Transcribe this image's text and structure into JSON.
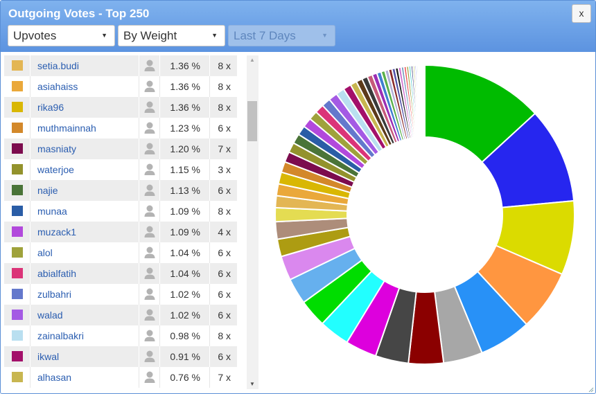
{
  "window": {
    "title": "Outgoing Votes - Top 250",
    "close_label": "x"
  },
  "filters": {
    "type": {
      "value": "Upvotes"
    },
    "sort": {
      "value": "By Weight"
    },
    "period": {
      "value": "Last 7 Days",
      "disabled": true
    }
  },
  "rows": [
    {
      "name": "setia.budi",
      "pct": "1.36 %",
      "count": "8 x",
      "color": "#e3b654"
    },
    {
      "name": "asiahaiss",
      "pct": "1.36 %",
      "count": "8 x",
      "color": "#eaa83a"
    },
    {
      "name": "rika96",
      "pct": "1.36 %",
      "count": "8 x",
      "color": "#d9b703"
    },
    {
      "name": "muthmainnah",
      "pct": "1.23 %",
      "count": "6 x",
      "color": "#d3882a"
    },
    {
      "name": "masniaty",
      "pct": "1.20 %",
      "count": "7 x",
      "color": "#7c0c4e"
    },
    {
      "name": "waterjoe",
      "pct": "1.15 %",
      "count": "3 x",
      "color": "#93922c"
    },
    {
      "name": "najie",
      "pct": "1.13 %",
      "count": "6 x",
      "color": "#4a7438"
    },
    {
      "name": "munaa",
      "pct": "1.09 %",
      "count": "8 x",
      "color": "#2a5da6"
    },
    {
      "name": "muzack1",
      "pct": "1.09 %",
      "count": "4 x",
      "color": "#b249dc"
    },
    {
      "name": "alol",
      "pct": "1.04 %",
      "count": "6 x",
      "color": "#9fa23b"
    },
    {
      "name": "abialfatih",
      "pct": "1.04 %",
      "count": "6 x",
      "color": "#db3478"
    },
    {
      "name": "zulbahri",
      "pct": "1.02 %",
      "count": "6 x",
      "color": "#6478cc"
    },
    {
      "name": "walad",
      "pct": "1.02 %",
      "count": "6 x",
      "color": "#a45ae4"
    },
    {
      "name": "zainalbakri",
      "pct": "0.98 %",
      "count": "8 x",
      "color": "#b9dff0"
    },
    {
      "name": "ikwal",
      "pct": "0.91 %",
      "count": "6 x",
      "color": "#a3106a"
    },
    {
      "name": "alhasan",
      "pct": "0.76 %",
      "count": "7 x",
      "color": "#c8b650"
    }
  ],
  "icons": {
    "voter": "user-icon",
    "close": "close-icon",
    "dropdown": "caret-down-icon",
    "scroll_up": "scroll-up-arrow-icon",
    "scroll_down": "scroll-down-arrow-icon"
  },
  "chart_data": {
    "type": "pie",
    "donut": true,
    "start": "top, clockwise",
    "slices": [
      {
        "percent": 14.0,
        "color": "#00bb00"
      },
      {
        "percent": 11.0,
        "color": "#2626ef"
      },
      {
        "percent": 8.5,
        "color": "#dbdb00"
      },
      {
        "percent": 7.0,
        "color": "#ff9640"
      },
      {
        "percent": 6.0,
        "color": "#2891f7"
      },
      {
        "percent": 4.5,
        "color": "#a7a7a7"
      },
      {
        "percent": 4.0,
        "color": "#8b0000"
      },
      {
        "percent": 3.8,
        "color": "#464646"
      },
      {
        "percent": 3.6,
        "color": "#dd00dd"
      },
      {
        "percent": 3.5,
        "color": "#22ffff"
      },
      {
        "percent": 3.2,
        "color": "#00dd00"
      },
      {
        "percent": 3.0,
        "color": "#66b0ee"
      },
      {
        "percent": 2.8,
        "color": "#da88ee"
      },
      {
        "percent": 2.0,
        "color": "#ad9c12"
      },
      {
        "percent": 2.0,
        "color": "#ad8d7a"
      },
      {
        "percent": 1.6,
        "color": "#e4dc52"
      },
      {
        "percent": 1.36,
        "color": "#e3b654"
      },
      {
        "percent": 1.36,
        "color": "#eaa83a"
      },
      {
        "percent": 1.36,
        "color": "#d9b703"
      },
      {
        "percent": 1.23,
        "color": "#d3882a"
      },
      {
        "percent": 1.2,
        "color": "#7c0c4e"
      },
      {
        "percent": 1.15,
        "color": "#93922c"
      },
      {
        "percent": 1.13,
        "color": "#4a7438"
      },
      {
        "percent": 1.09,
        "color": "#2a5da6"
      },
      {
        "percent": 1.09,
        "color": "#b249dc"
      },
      {
        "percent": 1.04,
        "color": "#9fa23b"
      },
      {
        "percent": 1.04,
        "color": "#db3478"
      },
      {
        "percent": 1.02,
        "color": "#6478cc"
      },
      {
        "percent": 1.02,
        "color": "#a45ae4"
      },
      {
        "percent": 0.98,
        "color": "#b9dff0"
      },
      {
        "percent": 0.91,
        "color": "#a3106a"
      },
      {
        "percent": 0.76,
        "color": "#c8b650"
      },
      {
        "percent": 0.7,
        "color": "#5c3a1a"
      },
      {
        "percent": 0.65,
        "color": "#3a3a3a"
      },
      {
        "percent": 0.6,
        "color": "#c65a7a"
      },
      {
        "percent": 0.55,
        "color": "#9b2fb5"
      },
      {
        "percent": 0.5,
        "color": "#3f7fd0"
      },
      {
        "percent": 0.45,
        "color": "#5ab04a"
      },
      {
        "percent": 0.42,
        "color": "#b0b0d8"
      },
      {
        "percent": 0.4,
        "color": "#8a2a2a"
      },
      {
        "percent": 0.38,
        "color": "#5555aa"
      },
      {
        "percent": 0.35,
        "color": "#202020"
      },
      {
        "percent": 0.33,
        "color": "#d070d0"
      },
      {
        "percent": 0.31,
        "color": "#7aa0c0"
      },
      {
        "percent": 0.29,
        "color": "#ee5555"
      },
      {
        "percent": 0.27,
        "color": "#a0a040"
      },
      {
        "percent": 0.25,
        "color": "#5fd0d0"
      },
      {
        "percent": 0.23,
        "color": "#404080"
      },
      {
        "percent": 0.21,
        "color": "#c0c060"
      },
      {
        "percent": 0.19,
        "color": "#8080ff"
      },
      {
        "percent": 0.17,
        "color": "#60c080"
      },
      {
        "percent": 0.15,
        "color": "#f080a0"
      },
      {
        "percent": 0.13,
        "color": "#4aa0f0"
      },
      {
        "percent": 0.12,
        "color": "#80e0ff"
      },
      {
        "percent": 0.11,
        "color": "#c0a0ff"
      },
      {
        "percent": 0.1,
        "color": "#90d040"
      },
      {
        "percent": 0.09,
        "color": "#ff9090"
      },
      {
        "percent": 0.08,
        "color": "#60e0e0"
      }
    ]
  }
}
